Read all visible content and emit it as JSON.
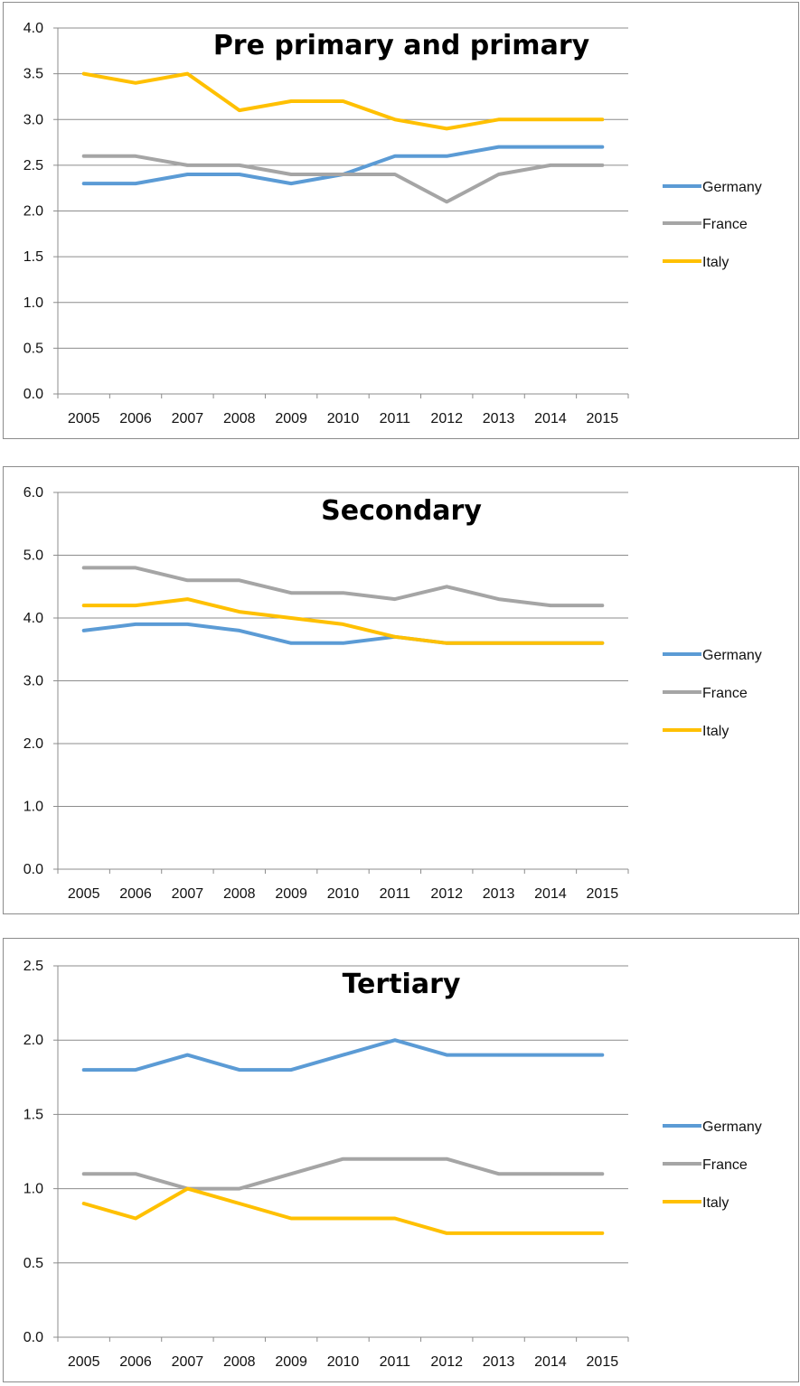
{
  "chart_data": [
    {
      "type": "line",
      "title": "Pre primary and primary",
      "categories": [
        "2005",
        "2006",
        "2007",
        "2008",
        "2009",
        "2010",
        "2011",
        "2012",
        "2013",
        "2014",
        "2015"
      ],
      "ylim": [
        0,
        4.0
      ],
      "yticks": [
        "0.0",
        "0.5",
        "1.0",
        "1.5",
        "2.0",
        "2.5",
        "3.0",
        "3.5",
        "4.0"
      ],
      "grid": true,
      "legend": "right",
      "series": [
        {
          "name": "Germany",
          "color": "#5b9bd5",
          "values": [
            2.3,
            2.3,
            2.4,
            2.4,
            2.3,
            2.4,
            2.6,
            2.6,
            2.7,
            2.7,
            2.7
          ]
        },
        {
          "name": "France",
          "color": "#a5a5a5",
          "values": [
            2.6,
            2.6,
            2.5,
            2.5,
            2.4,
            2.4,
            2.4,
            2.1,
            2.4,
            2.5,
            2.5
          ]
        },
        {
          "name": "Italy",
          "color": "#ffc000",
          "values": [
            3.5,
            3.4,
            3.5,
            3.1,
            3.2,
            3.2,
            3.0,
            2.9,
            3.0,
            3.0,
            3.0
          ]
        }
      ]
    },
    {
      "type": "line",
      "title": "Secondary",
      "categories": [
        "2005",
        "2006",
        "2007",
        "2008",
        "2009",
        "2010",
        "2011",
        "2012",
        "2013",
        "2014",
        "2015"
      ],
      "ylim": [
        0,
        6.0
      ],
      "yticks": [
        "0.0",
        "1.0",
        "2.0",
        "3.0",
        "4.0",
        "5.0",
        "6.0"
      ],
      "grid": true,
      "legend": "right",
      "series": [
        {
          "name": "Germany",
          "color": "#5b9bd5",
          "values": [
            3.8,
            3.9,
            3.9,
            3.8,
            3.6,
            3.6,
            3.7,
            3.6,
            3.6,
            3.6,
            3.6
          ]
        },
        {
          "name": "France",
          "color": "#a5a5a5",
          "values": [
            4.8,
            4.8,
            4.6,
            4.6,
            4.4,
            4.4,
            4.3,
            4.5,
            4.3,
            4.2,
            4.2
          ]
        },
        {
          "name": "Italy",
          "color": "#ffc000",
          "values": [
            4.2,
            4.2,
            4.3,
            4.1,
            4.0,
            3.9,
            3.7,
            3.6,
            3.6,
            3.6,
            3.6
          ]
        }
      ]
    },
    {
      "type": "line",
      "title": "Tertiary",
      "categories": [
        "2005",
        "2006",
        "2007",
        "2008",
        "2009",
        "2010",
        "2011",
        "2012",
        "2013",
        "2014",
        "2015"
      ],
      "ylim": [
        0,
        2.5
      ],
      "yticks": [
        "0.0",
        "0.5",
        "1.0",
        "1.5",
        "2.0",
        "2.5"
      ],
      "grid": true,
      "legend": "right",
      "series": [
        {
          "name": "Germany",
          "color": "#5b9bd5",
          "values": [
            1.8,
            1.8,
            1.9,
            1.8,
            1.8,
            1.9,
            2.0,
            1.9,
            1.9,
            1.9,
            1.9
          ]
        },
        {
          "name": "France",
          "color": "#a5a5a5",
          "values": [
            1.1,
            1.1,
            1.0,
            1.0,
            1.1,
            1.2,
            1.2,
            1.2,
            1.1,
            1.1,
            1.1
          ]
        },
        {
          "name": "Italy",
          "color": "#ffc000",
          "values": [
            0.9,
            0.8,
            1.0,
            0.9,
            0.8,
            0.8,
            0.8,
            0.7,
            0.7,
            0.7,
            0.7
          ]
        }
      ]
    }
  ]
}
